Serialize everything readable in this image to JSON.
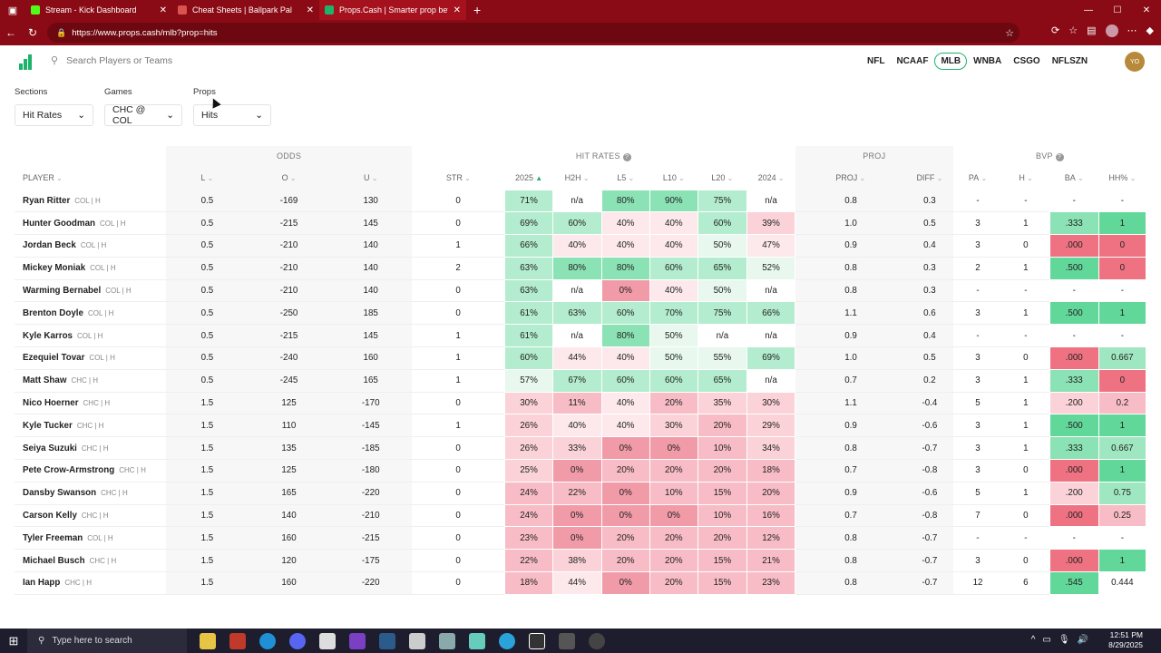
{
  "browser": {
    "tabs": [
      {
        "title": "Stream - Kick Dashboard",
        "color": "#53fc18"
      },
      {
        "title": "Cheat Sheets | Ballpark Pal",
        "color": "#d9534f"
      },
      {
        "title": "Props.Cash | Smarter prop bets. M",
        "color": "#1db36a"
      }
    ],
    "url": "https://www.props.cash/mlb?prop=hits"
  },
  "app": {
    "search_placeholder": "Search Players or Teams",
    "leagues": [
      "NFL",
      "NCAAF",
      "MLB",
      "WNBA",
      "CSGO",
      "NFLSZN"
    ],
    "active_league": "MLB",
    "user_initials": "YO"
  },
  "filters": {
    "sections_label": "Sections",
    "sections_value": "Hit Rates",
    "games_label": "Games",
    "games_value": "CHC @ COL",
    "props_label": "Props",
    "props_value": "Hits"
  },
  "table": {
    "groups": {
      "odds": "ODDS",
      "hit_rates": "HIT RATES",
      "proj": "PROJ",
      "bvp": "BVP"
    },
    "columns": [
      "PLAYER",
      "L",
      "O",
      "U",
      "STR",
      "2025",
      "H2H",
      "L5",
      "L10",
      "L20",
      "2024",
      "PROJ",
      "DIFF",
      "PA",
      "H",
      "BA",
      "HH%"
    ],
    "rows": [
      {
        "name": "Ryan Ritter",
        "team": "COL | H",
        "l": "0.5",
        "o": "-169",
        "u": "130",
        "str": "0",
        "hr": [
          "71%",
          "n/a",
          "80%",
          "90%",
          "75%",
          "n/a"
        ],
        "proj": "0.8",
        "diff": "0.3",
        "pa": "-",
        "h": "-",
        "ba": "-",
        "hh": "-"
      },
      {
        "name": "Hunter Goodman",
        "team": "COL | H",
        "l": "0.5",
        "o": "-215",
        "u": "145",
        "str": "0",
        "hr": [
          "69%",
          "60%",
          "40%",
          "40%",
          "60%",
          "39%"
        ],
        "proj": "1.0",
        "diff": "0.5",
        "pa": "3",
        "h": "1",
        "ba": ".333",
        "hh": "1"
      },
      {
        "name": "Jordan Beck",
        "team": "COL | H",
        "l": "0.5",
        "o": "-210",
        "u": "140",
        "str": "1",
        "hr": [
          "66%",
          "40%",
          "40%",
          "40%",
          "50%",
          "47%"
        ],
        "proj": "0.9",
        "diff": "0.4",
        "pa": "3",
        "h": "0",
        "ba": ".000",
        "hh": "0"
      },
      {
        "name": "Mickey Moniak",
        "team": "COL | H",
        "l": "0.5",
        "o": "-210",
        "u": "140",
        "str": "2",
        "hr": [
          "63%",
          "80%",
          "80%",
          "60%",
          "65%",
          "52%"
        ],
        "proj": "0.8",
        "diff": "0.3",
        "pa": "2",
        "h": "1",
        "ba": ".500",
        "hh": "0"
      },
      {
        "name": "Warming Bernabel",
        "team": "COL | H",
        "l": "0.5",
        "o": "-210",
        "u": "140",
        "str": "0",
        "hr": [
          "63%",
          "n/a",
          "0%",
          "40%",
          "50%",
          "n/a"
        ],
        "proj": "0.8",
        "diff": "0.3",
        "pa": "-",
        "h": "-",
        "ba": "-",
        "hh": "-"
      },
      {
        "name": "Brenton Doyle",
        "team": "COL | H",
        "l": "0.5",
        "o": "-250",
        "u": "185",
        "str": "0",
        "hr": [
          "61%",
          "63%",
          "60%",
          "70%",
          "75%",
          "66%"
        ],
        "proj": "1.1",
        "diff": "0.6",
        "pa": "3",
        "h": "1",
        "ba": ".500",
        "hh": "1"
      },
      {
        "name": "Kyle Karros",
        "team": "COL | H",
        "l": "0.5",
        "o": "-215",
        "u": "145",
        "str": "1",
        "hr": [
          "61%",
          "n/a",
          "80%",
          "50%",
          "n/a",
          "n/a"
        ],
        "proj": "0.9",
        "diff": "0.4",
        "pa": "-",
        "h": "-",
        "ba": "-",
        "hh": "-"
      },
      {
        "name": "Ezequiel Tovar",
        "team": "COL | H",
        "l": "0.5",
        "o": "-240",
        "u": "160",
        "str": "1",
        "hr": [
          "60%",
          "44%",
          "40%",
          "50%",
          "55%",
          "69%"
        ],
        "proj": "1.0",
        "diff": "0.5",
        "pa": "3",
        "h": "0",
        "ba": ".000",
        "hh": "0.667"
      },
      {
        "name": "Matt Shaw",
        "team": "CHC | H",
        "l": "0.5",
        "o": "-245",
        "u": "165",
        "str": "1",
        "hr": [
          "57%",
          "67%",
          "60%",
          "60%",
          "65%",
          "n/a"
        ],
        "proj": "0.7",
        "diff": "0.2",
        "pa": "3",
        "h": "1",
        "ba": ".333",
        "hh": "0"
      },
      {
        "name": "Nico Hoerner",
        "team": "CHC | H",
        "l": "1.5",
        "o": "125",
        "u": "-170",
        "str": "0",
        "hr": [
          "30%",
          "11%",
          "40%",
          "20%",
          "35%",
          "30%"
        ],
        "proj": "1.1",
        "diff": "-0.4",
        "pa": "5",
        "h": "1",
        "ba": ".200",
        "hh": "0.2"
      },
      {
        "name": "Kyle Tucker",
        "team": "CHC | H",
        "l": "1.5",
        "o": "110",
        "u": "-145",
        "str": "1",
        "hr": [
          "26%",
          "40%",
          "40%",
          "30%",
          "20%",
          "29%"
        ],
        "proj": "0.9",
        "diff": "-0.6",
        "pa": "3",
        "h": "1",
        "ba": ".500",
        "hh": "1"
      },
      {
        "name": "Seiya Suzuki",
        "team": "CHC | H",
        "l": "1.5",
        "o": "135",
        "u": "-185",
        "str": "0",
        "hr": [
          "26%",
          "33%",
          "0%",
          "0%",
          "10%",
          "34%"
        ],
        "proj": "0.8",
        "diff": "-0.7",
        "pa": "3",
        "h": "1",
        "ba": ".333",
        "hh": "0.667"
      },
      {
        "name": "Pete Crow-Armstrong",
        "team": "CHC | H",
        "l": "1.5",
        "o": "125",
        "u": "-180",
        "str": "0",
        "hr": [
          "25%",
          "0%",
          "20%",
          "20%",
          "20%",
          "18%"
        ],
        "proj": "0.7",
        "diff": "-0.8",
        "pa": "3",
        "h": "0",
        "ba": ".000",
        "hh": "1"
      },
      {
        "name": "Dansby Swanson",
        "team": "CHC | H",
        "l": "1.5",
        "o": "165",
        "u": "-220",
        "str": "0",
        "hr": [
          "24%",
          "22%",
          "0%",
          "10%",
          "15%",
          "20%"
        ],
        "proj": "0.9",
        "diff": "-0.6",
        "pa": "5",
        "h": "1",
        "ba": ".200",
        "hh": "0.75"
      },
      {
        "name": "Carson Kelly",
        "team": "CHC | H",
        "l": "1.5",
        "o": "140",
        "u": "-210",
        "str": "0",
        "hr": [
          "24%",
          "0%",
          "0%",
          "0%",
          "10%",
          "16%"
        ],
        "proj": "0.7",
        "diff": "-0.8",
        "pa": "7",
        "h": "0",
        "ba": ".000",
        "hh": "0.25"
      },
      {
        "name": "Tyler Freeman",
        "team": "COL | H",
        "l": "1.5",
        "o": "160",
        "u": "-215",
        "str": "0",
        "hr": [
          "23%",
          "0%",
          "20%",
          "20%",
          "20%",
          "12%"
        ],
        "proj": "0.8",
        "diff": "-0.7",
        "pa": "-",
        "h": "-",
        "ba": "-",
        "hh": "-"
      },
      {
        "name": "Michael Busch",
        "team": "CHC | H",
        "l": "1.5",
        "o": "120",
        "u": "-175",
        "str": "0",
        "hr": [
          "22%",
          "38%",
          "20%",
          "20%",
          "15%",
          "21%"
        ],
        "proj": "0.8",
        "diff": "-0.7",
        "pa": "3",
        "h": "0",
        "ba": ".000",
        "hh": "1"
      },
      {
        "name": "Ian Happ",
        "team": "CHC | H",
        "l": "1.5",
        "o": "160",
        "u": "-220",
        "str": "0",
        "hr": [
          "18%",
          "44%",
          "0%",
          "20%",
          "15%",
          "23%"
        ],
        "proj": "0.8",
        "diff": "-0.7",
        "pa": "12",
        "h": "6",
        "ba": ".545",
        "hh": "0.444"
      }
    ]
  },
  "taskbar": {
    "search_placeholder": "Type here to search",
    "time": "12:51 PM",
    "date": "8/29/2025"
  }
}
